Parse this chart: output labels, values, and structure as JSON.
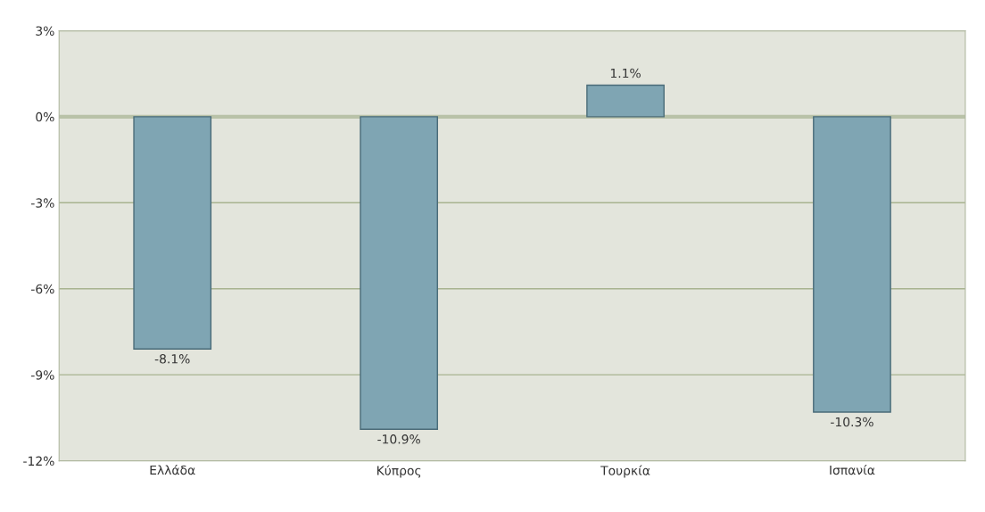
{
  "chart_data": {
    "type": "bar",
    "categories": [
      "Ελλάδα",
      "Κύπρος",
      "Τουρκία",
      "Ισπανία"
    ],
    "values": [
      -8.1,
      -10.9,
      1.1,
      -10.3
    ],
    "value_labels": [
      "-8.1%",
      "-10.9%",
      "1.1%",
      "-10.3%"
    ],
    "color": "#7fa5b3",
    "ylim": [
      -12,
      3
    ],
    "yticks": [
      {
        "value": 3,
        "label": "3%"
      },
      {
        "value": 0,
        "label": "0%"
      },
      {
        "value": -3,
        "label": "-3%"
      },
      {
        "value": -6,
        "label": "-6%"
      },
      {
        "value": -9,
        "label": "-9%"
      },
      {
        "value": -12,
        "label": "-12%"
      }
    ],
    "grid": "y"
  }
}
